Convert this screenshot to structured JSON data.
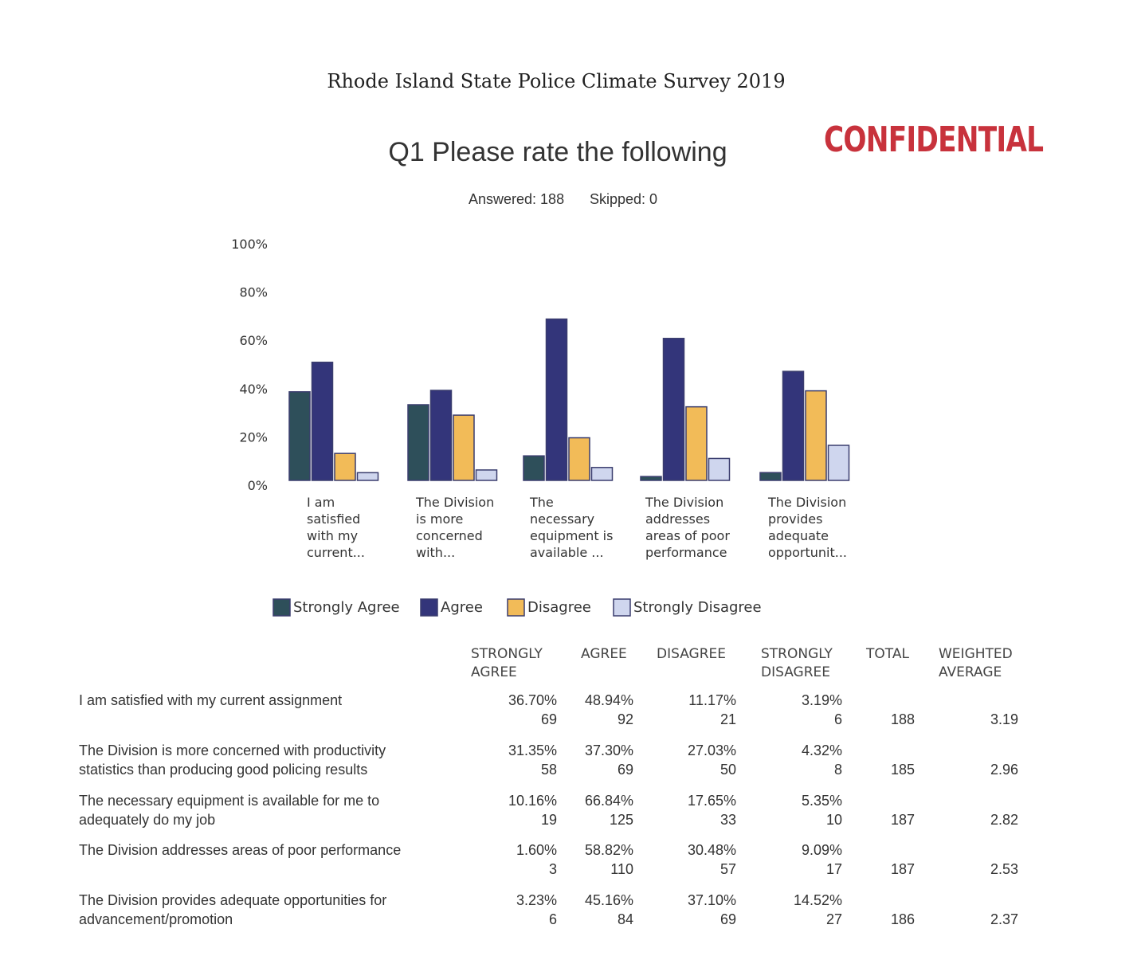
{
  "document": {
    "title": "Rhode Island State Police Climate Survey 2019",
    "stamp": "CONFIDENTIAL"
  },
  "question": {
    "title": "Q1 Please rate the following",
    "answered": "Answered: 188",
    "skipped": "Skipped: 0"
  },
  "colors": {
    "strongly_agree": "#2e4f5a",
    "agree": "#33357a",
    "disagree": "#f2bb58",
    "strongly_disagree": "#cfd6ee"
  },
  "chart_data": {
    "type": "bar",
    "title": "Q1 Please rate the following",
    "ylim": [
      0,
      100
    ],
    "yticks": [
      "0%",
      "20%",
      "40%",
      "60%",
      "80%",
      "100%"
    ],
    "categories": [
      [
        "I am",
        "satisfied",
        "with my",
        "current..."
      ],
      [
        "The Division",
        "is more",
        "concerned",
        "with..."
      ],
      [
        "The",
        "necessary",
        "equipment is",
        "available ..."
      ],
      [
        "The Division",
        "addresses",
        "areas of poor",
        "performance"
      ],
      [
        "The Division",
        "provides",
        "adequate",
        "opportunit..."
      ]
    ],
    "series": [
      {
        "name": "Strongly Agree",
        "values": [
          36.7,
          31.35,
          10.16,
          1.6,
          3.23
        ]
      },
      {
        "name": "Agree",
        "values": [
          48.94,
          37.3,
          66.84,
          58.82,
          45.16
        ]
      },
      {
        "name": "Disagree",
        "values": [
          11.17,
          27.03,
          17.65,
          30.48,
          37.1
        ]
      },
      {
        "name": "Strongly Disagree",
        "values": [
          3.19,
          4.32,
          5.35,
          9.09,
          14.52
        ]
      }
    ],
    "legend_position": "bottom"
  },
  "table": {
    "headers": {
      "strongly_agree": [
        "STRONGLY",
        "AGREE"
      ],
      "agree": "AGREE",
      "disagree": "DISAGREE",
      "strongly_disagree": [
        "STRONGLY",
        "DISAGREE"
      ],
      "total": "TOTAL",
      "weighted_average": [
        "WEIGHTED",
        "AVERAGE"
      ]
    },
    "rows": [
      {
        "label": [
          "I am satisfied with my current assignment",
          ""
        ],
        "sa_pct": "36.70%",
        "sa_n": "69",
        "a_pct": "48.94%",
        "a_n": "92",
        "d_pct": "11.17%",
        "d_n": "21",
        "sd_pct": "3.19%",
        "sd_n": "6",
        "total": "188",
        "wavg": "3.19"
      },
      {
        "label": [
          "The Division is more concerned with productivity",
          "statistics than producing good policing results"
        ],
        "sa_pct": "31.35%",
        "sa_n": "58",
        "a_pct": "37.30%",
        "a_n": "69",
        "d_pct": "27.03%",
        "d_n": "50",
        "sd_pct": "4.32%",
        "sd_n": "8",
        "total": "185",
        "wavg": "2.96"
      },
      {
        "label": [
          "The necessary equipment is available for me to",
          "adequately do my job"
        ],
        "sa_pct": "10.16%",
        "sa_n": "19",
        "a_pct": "66.84%",
        "a_n": "125",
        "d_pct": "17.65%",
        "d_n": "33",
        "sd_pct": "5.35%",
        "sd_n": "10",
        "total": "187",
        "wavg": "2.82"
      },
      {
        "label": [
          "The Division addresses areas of poor performance",
          ""
        ],
        "sa_pct": "1.60%",
        "sa_n": "3",
        "a_pct": "58.82%",
        "a_n": "110",
        "d_pct": "30.48%",
        "d_n": "57",
        "sd_pct": "9.09%",
        "sd_n": "17",
        "total": "187",
        "wavg": "2.53"
      },
      {
        "label": [
          "The Division provides adequate opportunities for",
          "advancement/promotion"
        ],
        "sa_pct": "3.23%",
        "sa_n": "6",
        "a_pct": "45.16%",
        "a_n": "84",
        "d_pct": "37.10%",
        "d_n": "69",
        "sd_pct": "14.52%",
        "sd_n": "27",
        "total": "186",
        "wavg": "2.37"
      }
    ]
  }
}
